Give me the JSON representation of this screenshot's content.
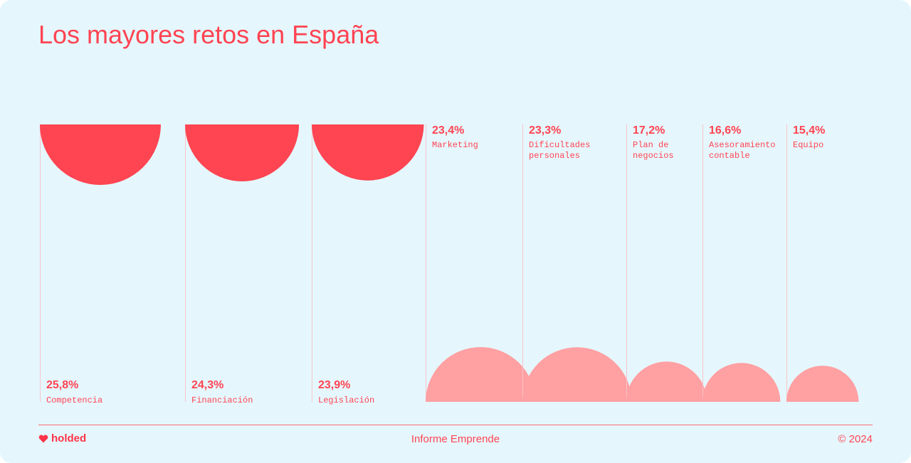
{
  "header": {
    "title": "Los mayores retos en España"
  },
  "chart_data": {
    "type": "bar",
    "title": "Los mayores retos en España",
    "unit": "%",
    "categories": [
      "Competencia",
      "Financiación",
      "Legislación",
      "Marketing",
      "Dificultades personales",
      "Plan de negocios",
      "Asesoramiento contable",
      "Equipo"
    ],
    "values": [
      25.8,
      24.3,
      23.9,
      23.4,
      23.3,
      17.2,
      16.6,
      15.4
    ],
    "value_labels": [
      "25,8%",
      "24,3%",
      "23,9%",
      "23,4%",
      "23,3%",
      "17,2%",
      "16,6%",
      "15,4%"
    ],
    "label_lines": [
      [
        "Competencia"
      ],
      [
        "Financiación"
      ],
      [
        "Legislación"
      ],
      [
        "Marketing"
      ],
      [
        "Dificultades",
        "personales"
      ],
      [
        "Plan de",
        "negocios"
      ],
      [
        "Asesoramiento",
        "contable"
      ],
      [
        "Equipo"
      ]
    ],
    "series_colors": {
      "top_three": "#ff4452",
      "others": "#ffa0a2"
    },
    "grid": false,
    "legend": "none"
  },
  "footer": {
    "brand": "holded",
    "report": "Informe Emprende",
    "copyright": "© 2024"
  },
  "colors": {
    "background": "#e5f7fd",
    "accent": "#ff4452",
    "light_accent": "#ffa0a2",
    "divider": "#f9c3c8"
  }
}
